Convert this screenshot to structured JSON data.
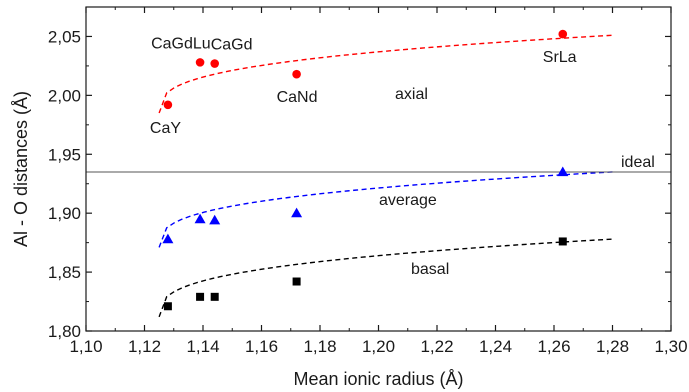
{
  "chart_data": {
    "type": "scatter",
    "title": "",
    "xlabel": "Mean ionic radius (Å)",
    "ylabel": "Al - O distances (Å)",
    "xlim": [
      1.1,
      1.3
    ],
    "ylim": [
      1.8,
      2.075
    ],
    "x_ticks": [
      1.1,
      1.12,
      1.14,
      1.16,
      1.18,
      1.2,
      1.22,
      1.24,
      1.26,
      1.28,
      1.3
    ],
    "x_tick_labels": [
      "1,10",
      "1,12",
      "1,14",
      "1,16",
      "1,18",
      "1,20",
      "1,22",
      "1,24",
      "1,26",
      "1,28",
      "1,30"
    ],
    "y_ticks": [
      1.8,
      1.85,
      1.9,
      1.95,
      2.0,
      2.05
    ],
    "y_tick_labels": [
      "1,80",
      "1,85",
      "1,90",
      "1,95",
      "2,00",
      "2,05"
    ],
    "grid": false,
    "reference_line": {
      "label": "ideal",
      "y": 1.935
    },
    "series": [
      {
        "name": "axial",
        "marker": "circle",
        "color": "#ff0000",
        "x": [
          1.128,
          1.139,
          1.144,
          1.172,
          1.263
        ],
        "y": [
          1.992,
          2.028,
          2.027,
          2.018,
          2.052
        ],
        "fit_x": [
          1.125,
          1.28
        ],
        "fit_endpoints_y": [
          1.985,
          2.051
        ],
        "fit_curvature": 0.33
      },
      {
        "name": "average",
        "marker": "triangle",
        "color": "#0000ff",
        "x": [
          1.128,
          1.139,
          1.144,
          1.172,
          1.263
        ],
        "y": [
          1.878,
          1.895,
          1.894,
          1.9,
          1.935
        ],
        "fit_x": [
          1.125,
          1.28
        ],
        "fit_endpoints_y": [
          1.871,
          1.935
        ],
        "fit_curvature": 0.33
      },
      {
        "name": "basal",
        "marker": "square",
        "color": "#000000",
        "x": [
          1.128,
          1.139,
          1.144,
          1.172,
          1.263
        ],
        "y": [
          1.821,
          1.829,
          1.829,
          1.842,
          1.876
        ],
        "fit_x": [
          1.125,
          1.28
        ],
        "fit_endpoints_y": [
          1.812,
          1.878
        ],
        "fit_curvature": 0.33
      }
    ],
    "point_labels": [
      {
        "text": "CaY",
        "x": 1.128,
        "y": 1.992
      },
      {
        "text": "CaGdLu",
        "x": 1.139,
        "y": 2.028
      },
      {
        "text": "CaGd",
        "x": 1.144,
        "y": 2.027
      },
      {
        "text": "CaNd",
        "x": 1.172,
        "y": 2.018
      },
      {
        "text": "SrLa",
        "x": 1.263,
        "y": 2.052
      }
    ]
  }
}
